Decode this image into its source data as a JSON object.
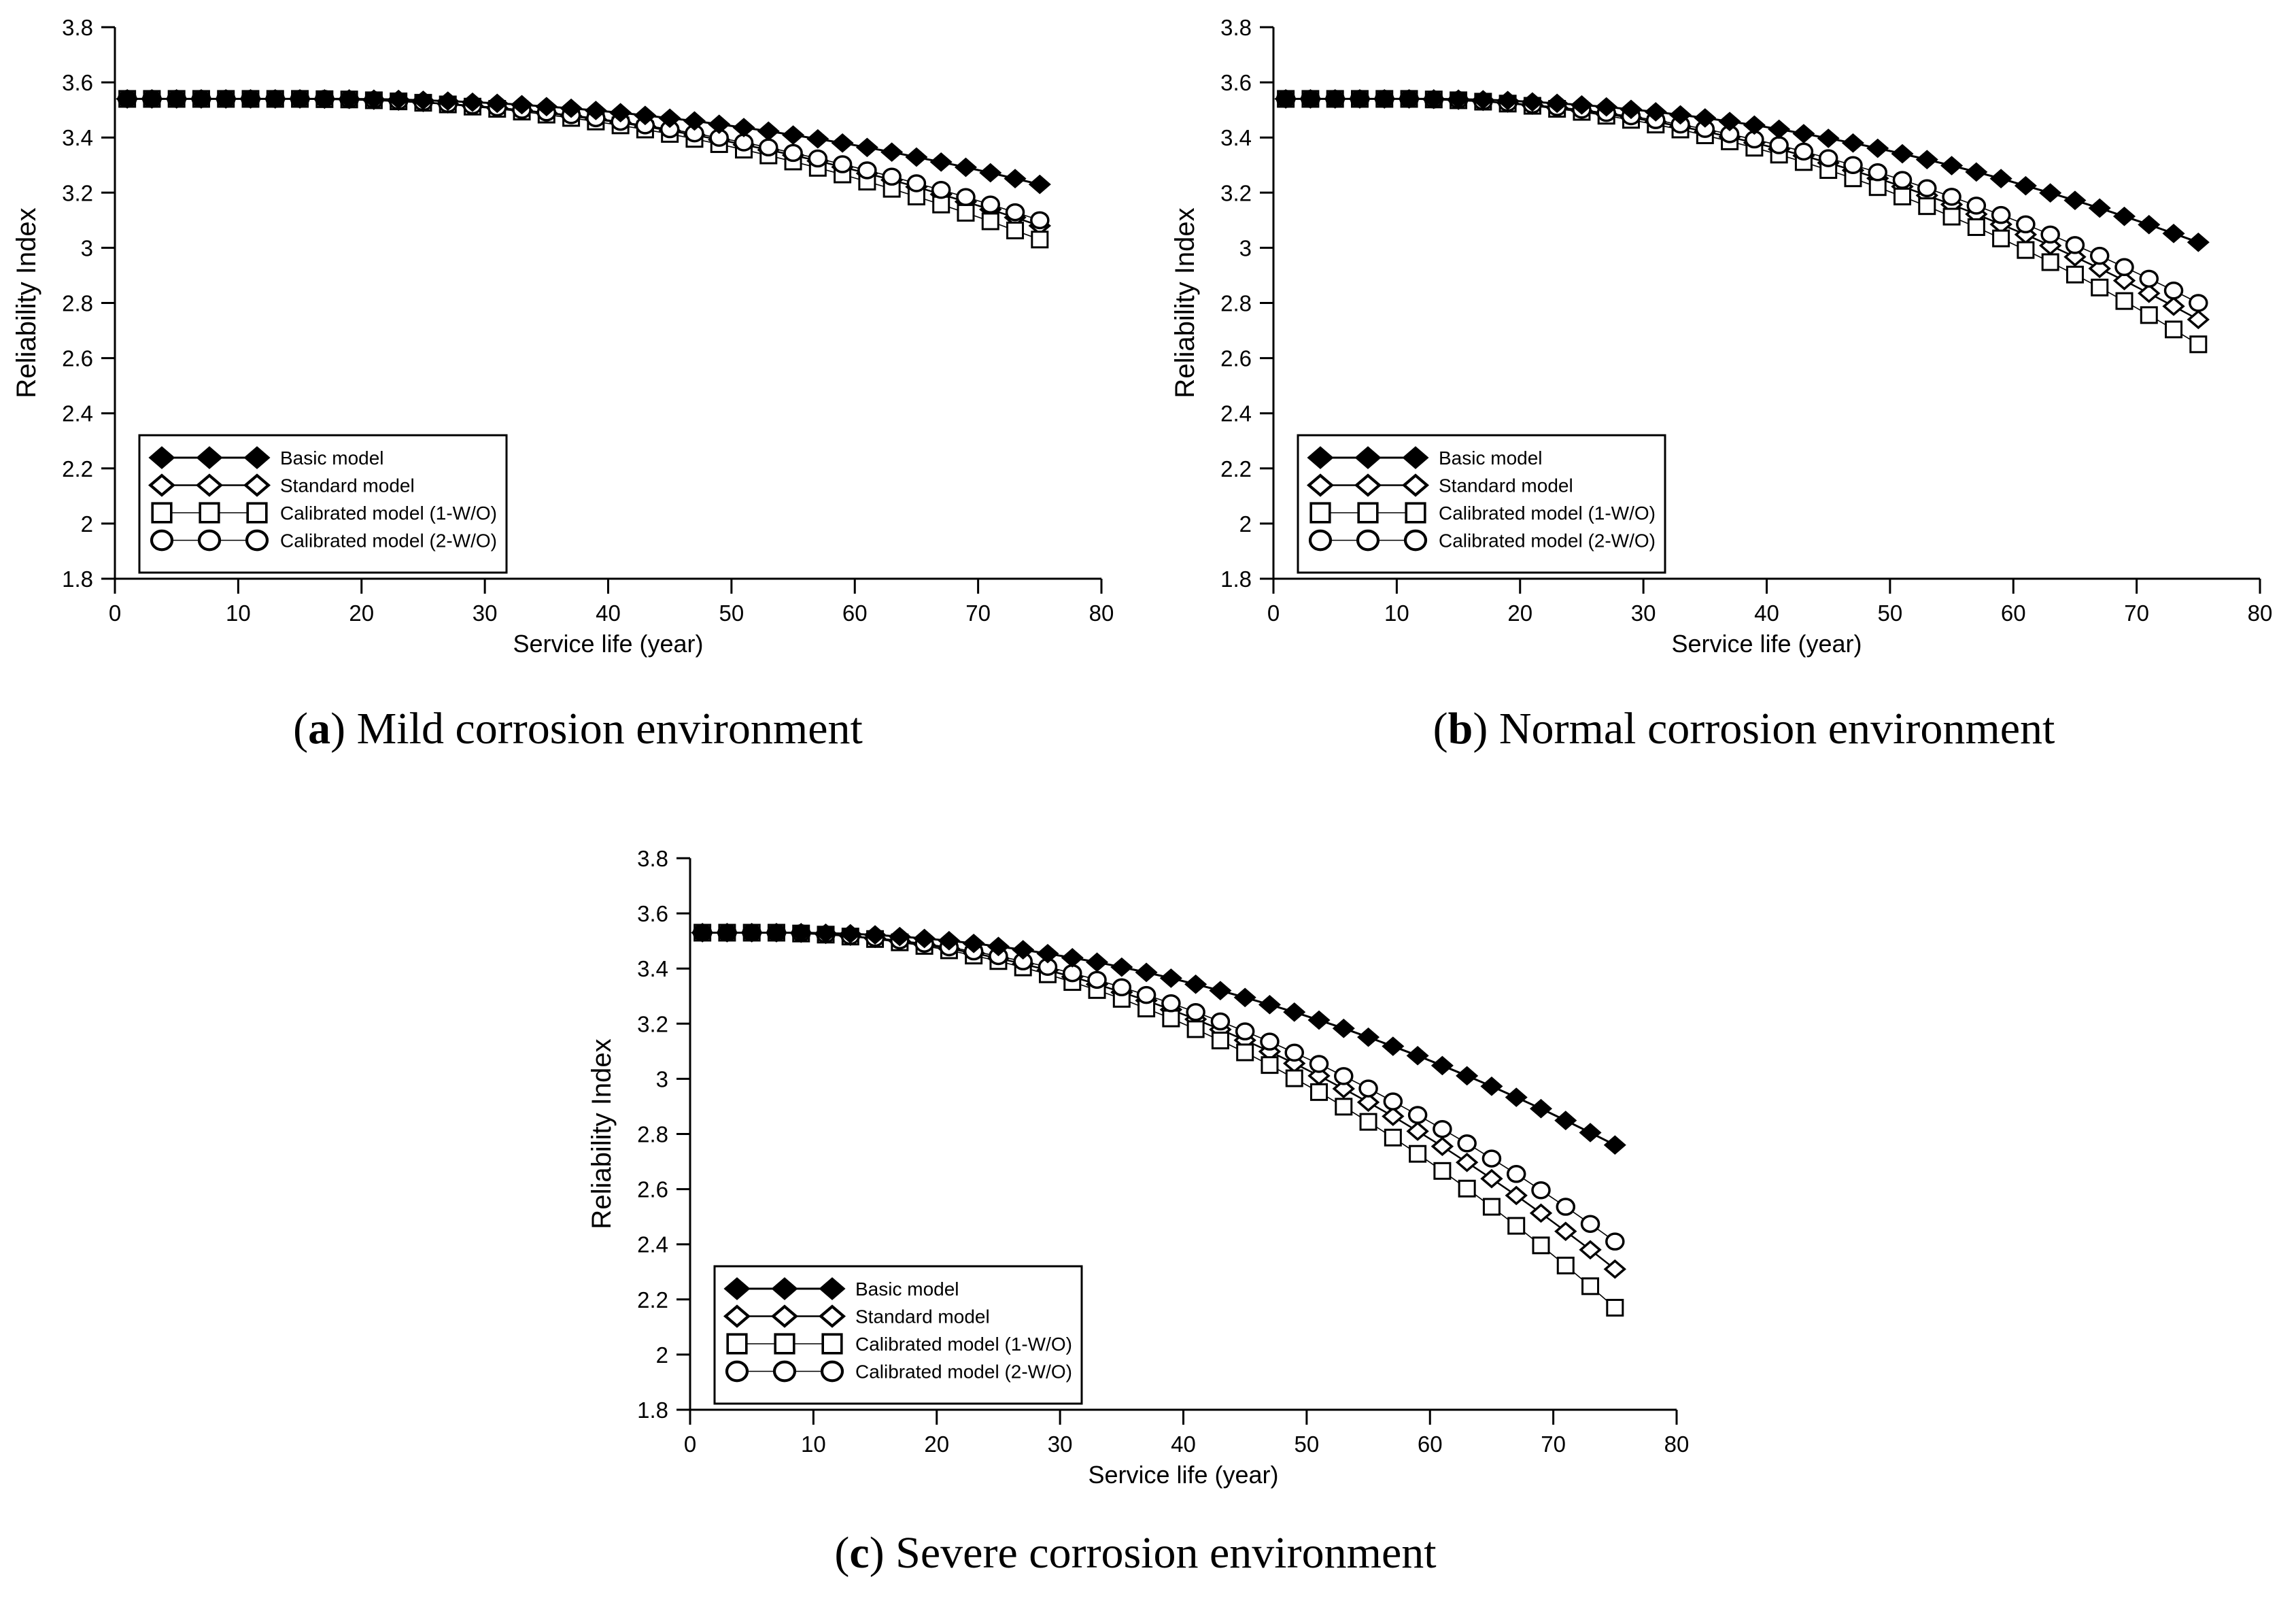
{
  "figure": {
    "background": "#ffffff",
    "ink_color": "#000000",
    "captions": [
      {
        "open": "(",
        "letter": "a",
        "close": ")",
        "text": " Mild corrosion environment"
      },
      {
        "open": "(",
        "letter": "b",
        "close": ")",
        "text": " Normal corrosion environment"
      },
      {
        "open": "(",
        "letter": "c",
        "close": ")",
        "text": " Severe corrosion environment"
      }
    ]
  },
  "chart_data": [
    {
      "id": "a",
      "type": "line",
      "caption": "(a) Mild corrosion environment",
      "xlabel": "Service life (year)",
      "ylabel": "Reliability Index",
      "xlim": [
        0,
        80
      ],
      "ylim": [
        1.8,
        3.8
      ],
      "x_ticks": [
        0,
        10,
        20,
        30,
        40,
        50,
        60,
        70,
        80
      ],
      "y_ticks": [
        3.8,
        3.6,
        3.4,
        3.2,
        3,
        2.8,
        2.6,
        2.4,
        2.2,
        2,
        1.8
      ],
      "y_tick_labels": [
        "3.8",
        "3.6",
        "3.4",
        "3.2",
        "3",
        "2.8",
        "2.6",
        "2.4",
        "2.2",
        "2",
        "1.8"
      ],
      "grid": false,
      "legend_position": "lower-left",
      "x": [
        1,
        3,
        5,
        7,
        9,
        11,
        13,
        15,
        17,
        19,
        21,
        23,
        25,
        27,
        29,
        31,
        33,
        35,
        37,
        39,
        41,
        43,
        45,
        47,
        49,
        51,
        53,
        55,
        57,
        59,
        61,
        63,
        65,
        67,
        69,
        71,
        73,
        75
      ],
      "series": [
        {
          "name": "Basic model",
          "marker": "filled-diamond",
          "color": "#000000",
          "values": [
            3.54,
            3.54,
            3.54,
            3.54,
            3.54,
            3.54,
            3.54,
            3.54,
            3.54,
            3.54,
            3.539,
            3.538,
            3.535,
            3.532,
            3.528,
            3.524,
            3.519,
            3.512,
            3.506,
            3.498,
            3.49,
            3.48,
            3.47,
            3.46,
            3.448,
            3.436,
            3.423,
            3.409,
            3.395,
            3.38,
            3.364,
            3.347,
            3.329,
            3.311,
            3.292,
            3.272,
            3.251,
            3.23
          ]
        },
        {
          "name": "Standard model",
          "marker": "open-diamond",
          "color": "#000000",
          "values": [
            3.54,
            3.54,
            3.54,
            3.54,
            3.54,
            3.54,
            3.54,
            3.54,
            3.539,
            3.538,
            3.535,
            3.532,
            3.527,
            3.522,
            3.515,
            3.507,
            3.499,
            3.489,
            3.478,
            3.466,
            3.454,
            3.44,
            3.425,
            3.409,
            3.392,
            3.374,
            3.355,
            3.336,
            3.315,
            3.293,
            3.27,
            3.246,
            3.221,
            3.194,
            3.167,
            3.139,
            3.11,
            3.08
          ]
        },
        {
          "name": "Calibrated model (1-W/O)",
          "marker": "open-square",
          "color": "#000000",
          "values": [
            3.54,
            3.54,
            3.54,
            3.54,
            3.54,
            3.54,
            3.54,
            3.54,
            3.539,
            3.538,
            3.535,
            3.531,
            3.526,
            3.52,
            3.512,
            3.504,
            3.494,
            3.483,
            3.471,
            3.458,
            3.444,
            3.429,
            3.413,
            3.395,
            3.376,
            3.356,
            3.335,
            3.313,
            3.29,
            3.266,
            3.24,
            3.214,
            3.186,
            3.157,
            3.127,
            3.096,
            3.063,
            3.03
          ]
        },
        {
          "name": "Calibrated model (2-W/O)",
          "marker": "open-circle",
          "color": "#000000",
          "values": [
            3.54,
            3.54,
            3.54,
            3.54,
            3.54,
            3.54,
            3.54,
            3.54,
            3.54,
            3.538,
            3.536,
            3.532,
            3.528,
            3.522,
            3.516,
            3.509,
            3.5,
            3.491,
            3.481,
            3.47,
            3.457,
            3.444,
            3.43,
            3.415,
            3.399,
            3.382,
            3.364,
            3.344,
            3.324,
            3.303,
            3.281,
            3.258,
            3.234,
            3.21,
            3.184,
            3.157,
            3.129,
            3.1
          ]
        }
      ]
    },
    {
      "id": "b",
      "type": "line",
      "caption": "(b) Normal corrosion environment",
      "xlabel": "Service life (year)",
      "ylabel": "Reliability Index",
      "xlim": [
        0,
        80
      ],
      "ylim": [
        1.8,
        3.8
      ],
      "x_ticks": [
        0,
        10,
        20,
        30,
        40,
        50,
        60,
        70,
        80
      ],
      "y_ticks": [
        3.8,
        3.6,
        3.4,
        3.2,
        3,
        2.8,
        2.6,
        2.4,
        2.2,
        2,
        1.8
      ],
      "y_tick_labels": [
        "3.8",
        "3.6",
        "3.4",
        "3.2",
        "3",
        "2.8",
        "2.6",
        "2.4",
        "2.2",
        "2",
        "1.8"
      ],
      "grid": false,
      "legend_position": "lower-left",
      "x": [
        1,
        3,
        5,
        7,
        9,
        11,
        13,
        15,
        17,
        19,
        21,
        23,
        25,
        27,
        29,
        31,
        33,
        35,
        37,
        39,
        41,
        43,
        45,
        47,
        49,
        51,
        53,
        55,
        57,
        59,
        61,
        63,
        65,
        67,
        69,
        71,
        73,
        75
      ],
      "series": [
        {
          "name": "Basic model",
          "marker": "filled-diamond",
          "color": "#000000",
          "values": [
            3.54,
            3.54,
            3.54,
            3.54,
            3.54,
            3.54,
            3.54,
            3.539,
            3.537,
            3.534,
            3.529,
            3.524,
            3.518,
            3.511,
            3.502,
            3.493,
            3.482,
            3.471,
            3.458,
            3.445,
            3.43,
            3.414,
            3.397,
            3.38,
            3.361,
            3.341,
            3.32,
            3.298,
            3.275,
            3.251,
            3.225,
            3.199,
            3.172,
            3.144,
            3.114,
            3.084,
            3.052,
            3.02
          ]
        },
        {
          "name": "Standard model",
          "marker": "open-diamond",
          "color": "#000000",
          "values": [
            3.54,
            3.54,
            3.54,
            3.54,
            3.54,
            3.54,
            3.538,
            3.535,
            3.531,
            3.525,
            3.517,
            3.508,
            3.497,
            3.485,
            3.472,
            3.457,
            3.44,
            3.422,
            3.402,
            3.381,
            3.358,
            3.334,
            3.308,
            3.281,
            3.252,
            3.222,
            3.19,
            3.157,
            3.122,
            3.085,
            3.048,
            3.008,
            2.967,
            2.925,
            2.881,
            2.835,
            2.788,
            2.74
          ]
        },
        {
          "name": "Calibrated model (1-W/O)",
          "marker": "open-square",
          "color": "#000000",
          "values": [
            3.54,
            3.54,
            3.54,
            3.54,
            3.54,
            3.54,
            3.538,
            3.535,
            3.53,
            3.523,
            3.515,
            3.504,
            3.493,
            3.479,
            3.464,
            3.447,
            3.429,
            3.408,
            3.386,
            3.363,
            3.338,
            3.311,
            3.282,
            3.252,
            3.22,
            3.186,
            3.151,
            3.113,
            3.075,
            3.034,
            2.992,
            2.948,
            2.903,
            2.856,
            2.807,
            2.756,
            2.704,
            2.65
          ]
        },
        {
          "name": "Calibrated model (2-W/O)",
          "marker": "open-circle",
          "color": "#000000",
          "values": [
            3.54,
            3.54,
            3.54,
            3.54,
            3.54,
            3.54,
            3.538,
            3.536,
            3.531,
            3.526,
            3.519,
            3.51,
            3.501,
            3.489,
            3.477,
            3.463,
            3.447,
            3.431,
            3.412,
            3.393,
            3.372,
            3.349,
            3.325,
            3.3,
            3.274,
            3.246,
            3.216,
            3.185,
            3.153,
            3.119,
            3.085,
            3.048,
            3.01,
            2.971,
            2.93,
            2.888,
            2.845,
            2.8
          ]
        }
      ]
    },
    {
      "id": "c",
      "type": "line",
      "caption": "(c) Severe corrosion environment",
      "xlabel": "Service life (year)",
      "ylabel": "Reliability Index",
      "xlim": [
        0,
        80
      ],
      "ylim": [
        1.8,
        3.8
      ],
      "x_ticks": [
        0,
        10,
        20,
        30,
        40,
        50,
        60,
        70,
        80
      ],
      "y_ticks": [
        3.8,
        3.6,
        3.4,
        3.2,
        3,
        2.8,
        2.6,
        2.4,
        2.2,
        2,
        1.8
      ],
      "y_tick_labels": [
        "3.8",
        "3.6",
        "3.4",
        "3.2",
        "3",
        "2.8",
        "2.6",
        "2.4",
        "2.2",
        "2",
        "1.8"
      ],
      "grid": false,
      "legend_position": "lower-left",
      "x": [
        1,
        3,
        5,
        7,
        9,
        11,
        13,
        15,
        17,
        19,
        21,
        23,
        25,
        27,
        29,
        31,
        33,
        35,
        37,
        39,
        41,
        43,
        45,
        47,
        49,
        51,
        53,
        55,
        57,
        59,
        61,
        63,
        65,
        67,
        69,
        71,
        73,
        75
      ],
      "series": [
        {
          "name": "Basic model",
          "marker": "filled-diamond",
          "color": "#000000",
          "values": [
            3.53,
            3.53,
            3.53,
            3.53,
            3.53,
            3.528,
            3.526,
            3.522,
            3.516,
            3.509,
            3.501,
            3.491,
            3.48,
            3.468,
            3.454,
            3.439,
            3.423,
            3.405,
            3.386,
            3.365,
            3.343,
            3.32,
            3.295,
            3.269,
            3.242,
            3.213,
            3.183,
            3.151,
            3.118,
            3.084,
            3.048,
            3.011,
            2.973,
            2.933,
            2.892,
            2.849,
            2.805,
            2.76
          ]
        },
        {
          "name": "Standard model",
          "marker": "open-diamond",
          "color": "#000000",
          "values": [
            3.53,
            3.53,
            3.53,
            3.53,
            3.528,
            3.524,
            3.517,
            3.509,
            3.499,
            3.487,
            3.472,
            3.456,
            3.437,
            3.417,
            3.394,
            3.37,
            3.343,
            3.314,
            3.284,
            3.251,
            3.216,
            3.179,
            3.14,
            3.099,
            3.056,
            3.011,
            2.964,
            2.915,
            2.864,
            2.81,
            2.755,
            2.697,
            2.638,
            2.577,
            2.513,
            2.447,
            2.38,
            2.31
          ]
        },
        {
          "name": "Calibrated model (1-W/O)",
          "marker": "open-square",
          "color": "#000000",
          "values": [
            3.53,
            3.53,
            3.53,
            3.53,
            3.527,
            3.523,
            3.516,
            3.507,
            3.495,
            3.482,
            3.466,
            3.447,
            3.427,
            3.404,
            3.379,
            3.351,
            3.322,
            3.29,
            3.255,
            3.219,
            3.18,
            3.139,
            3.096,
            3.05,
            3.002,
            2.952,
            2.899,
            2.844,
            2.787,
            2.728,
            2.666,
            2.602,
            2.536,
            2.467,
            2.396,
            2.323,
            2.248,
            2.17
          ]
        },
        {
          "name": "Calibrated model (2-W/O)",
          "marker": "open-circle",
          "color": "#000000",
          "values": [
            3.53,
            3.53,
            3.53,
            3.53,
            3.528,
            3.524,
            3.518,
            3.511,
            3.502,
            3.49,
            3.477,
            3.462,
            3.445,
            3.426,
            3.406,
            3.383,
            3.359,
            3.332,
            3.304,
            3.274,
            3.242,
            3.208,
            3.172,
            3.135,
            3.095,
            3.054,
            3.01,
            2.965,
            2.918,
            2.869,
            2.818,
            2.766,
            2.711,
            2.655,
            2.596,
            2.536,
            2.474,
            2.41
          ]
        }
      ]
    }
  ]
}
